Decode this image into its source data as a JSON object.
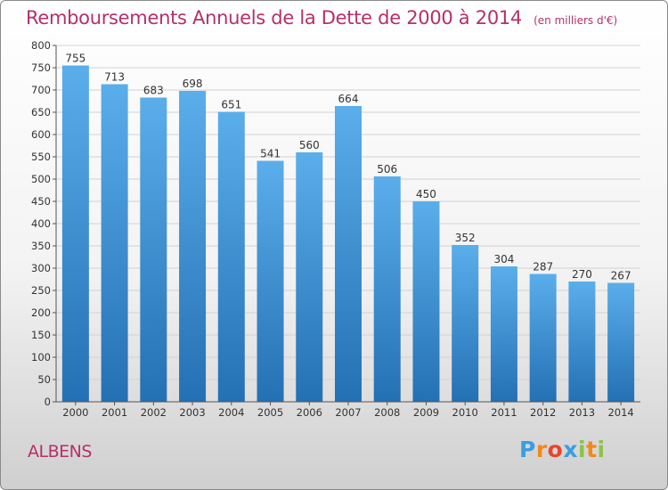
{
  "chart_data": {
    "type": "bar",
    "title": "Remboursements Annuels de la Dette de 2000 à 2014",
    "subtitle": "(en milliers d'€)",
    "categories": [
      "2000",
      "2001",
      "2002",
      "2003",
      "2004",
      "2005",
      "2006",
      "2007",
      "2008",
      "2009",
      "2010",
      "2011",
      "2012",
      "2013",
      "2014"
    ],
    "values": [
      755,
      713,
      683,
      698,
      651,
      541,
      560,
      664,
      506,
      450,
      352,
      304,
      287,
      270,
      267
    ],
    "ylim": [
      0,
      800
    ],
    "ytick_step": 50,
    "grid": true,
    "legend": "none",
    "bar_color_light": "#5aaeea",
    "bar_color_dark": "#2470b4"
  },
  "location": "ALBENS",
  "brand": {
    "letters": [
      "P",
      "r",
      "o",
      "x",
      "i",
      "t",
      "i"
    ],
    "colors": [
      "#3a9ee0",
      "#f08a1c",
      "#e7452c",
      "#3a9ee0",
      "#8bc34a",
      "#f08a1c",
      "#8bc34a"
    ]
  }
}
